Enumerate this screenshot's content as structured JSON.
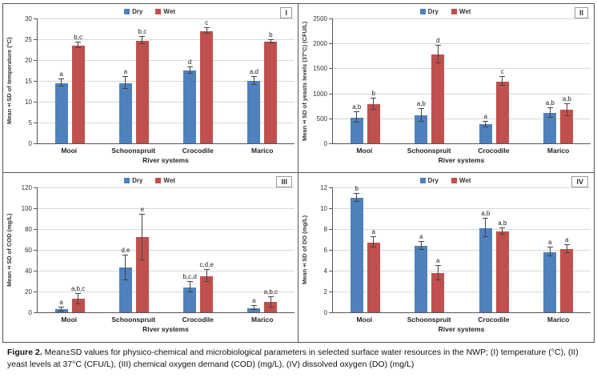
{
  "figure": {
    "caption_label": "Figure 2.",
    "caption_text": " Mean±SD values for physico-chemical and microbiological parameters in selected surface water resources in the NWP; (I) temperature (°C), (II) yeast levels at 37°C (CFU/L), (III) chemical oxygen demand (COD) (mg/L), (IV) dissolved oxygen (DO) (mg/L)"
  },
  "colors": {
    "dry": "#4F81BD",
    "wet": "#C0504D",
    "grid": "#D9D9D9",
    "axis": "#555555"
  },
  "chart_data": [
    {
      "type": "bar",
      "panel": "I",
      "title": "",
      "categories": [
        "Mooi",
        "Schoonspruit",
        "Crocodile",
        "Marico"
      ],
      "xlabel": "River systems",
      "ylabel": "Mean±SD of temperature (°C)",
      "ylim": [
        0,
        30
      ],
      "ytick_step": 5,
      "legend_position": "top-center",
      "grid": true,
      "series": [
        {
          "name": "Dry",
          "values": [
            14.5,
            14.5,
            17.5,
            15.0
          ],
          "errors": [
            0.8,
            1.5,
            0.7,
            1.0
          ],
          "letters": [
            "a",
            "a",
            "d",
            "a,d"
          ]
        },
        {
          "name": "Wet",
          "values": [
            23.5,
            24.7,
            27.0,
            24.5
          ],
          "errors": [
            0.7,
            0.8,
            0.7,
            0.4
          ],
          "letters": [
            "b,c",
            "b,c",
            "c",
            "b"
          ]
        }
      ]
    },
    {
      "type": "bar",
      "panel": "II",
      "title": "",
      "categories": [
        "Mooi",
        "Schoonspruit",
        "Crocodile",
        "Marico"
      ],
      "xlabel": "River systems",
      "ylabel": "Mean±SD of yeasts levels (37°C) (CFU/L)",
      "ylim": [
        0,
        2500
      ],
      "ytick_step": 500,
      "legend_position": "top-center",
      "grid": true,
      "series": [
        {
          "name": "Dry",
          "values": [
            520,
            560,
            380,
            610
          ],
          "errors": [
            110,
            130,
            60,
            100
          ],
          "letters": [
            "a,b",
            "a,b",
            "a",
            "a,b"
          ]
        },
        {
          "name": "Wet",
          "values": [
            790,
            1780,
            1240,
            670
          ],
          "errors": [
            110,
            180,
            90,
            120
          ],
          "letters": [
            "b",
            "d",
            "c",
            "a,b"
          ]
        }
      ]
    },
    {
      "type": "bar",
      "panel": "III",
      "title": "",
      "categories": [
        "Mooi",
        "Schoonspruit",
        "Crocodile",
        "Marico"
      ],
      "xlabel": "River systems",
      "ylabel": "Mean±SD of COD (mg/L)",
      "ylim": [
        0,
        120
      ],
      "ytick_step": 20,
      "legend_position": "top-center",
      "grid": true,
      "series": [
        {
          "name": "Dry",
          "values": [
            3,
            43,
            24,
            4
          ],
          "errors": [
            2,
            12,
            5,
            2
          ],
          "letters": [
            "a",
            "d,e",
            "b,c,d",
            "a"
          ]
        },
        {
          "name": "Wet",
          "values": [
            13,
            72,
            35,
            10
          ],
          "errors": [
            5,
            22,
            6,
            5
          ],
          "letters": [
            "a,b,c",
            "e",
            "c,d,e",
            "a,b,c"
          ]
        }
      ]
    },
    {
      "type": "bar",
      "panel": "IV",
      "title": "",
      "categories": [
        "Mooi",
        "Schoonspruit",
        "Crocodile",
        "Marico"
      ],
      "xlabel": "River systems",
      "ylabel": "Mean±SD of DO (mg/L)",
      "ylim": [
        0,
        12
      ],
      "ytick_step": 2,
      "legend_position": "top-center",
      "grid": true,
      "series": [
        {
          "name": "Dry",
          "values": [
            11.0,
            6.4,
            8.1,
            5.8
          ],
          "errors": [
            0.4,
            0.4,
            0.9,
            0.4
          ],
          "letters": [
            "b",
            "a",
            "a,b",
            "a"
          ]
        },
        {
          "name": "Wet",
          "values": [
            6.7,
            3.8,
            7.8,
            6.1
          ],
          "errors": [
            0.5,
            0.7,
            0.3,
            0.4
          ],
          "letters": [
            "a",
            "a",
            "a,b",
            "a"
          ]
        }
      ]
    }
  ]
}
